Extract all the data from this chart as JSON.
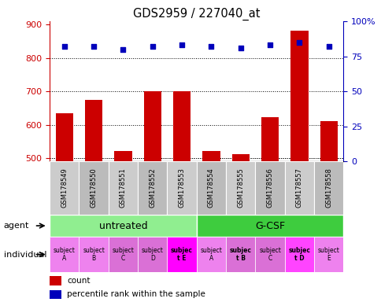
{
  "title": "GDS2959 / 227040_at",
  "samples": [
    "GSM178549",
    "GSM178550",
    "GSM178551",
    "GSM178552",
    "GSM178553",
    "GSM178554",
    "GSM178555",
    "GSM178556",
    "GSM178557",
    "GSM178558"
  ],
  "counts": [
    635,
    675,
    522,
    700,
    700,
    522,
    513,
    623,
    882,
    610
  ],
  "percentile_ranks": [
    82,
    82,
    80,
    82,
    83,
    82,
    81,
    83,
    85,
    82
  ],
  "ylim_left": [
    490,
    910
  ],
  "ylim_right": [
    0,
    100
  ],
  "yticks_left": [
    500,
    600,
    700,
    800,
    900
  ],
  "yticks_right": [
    0,
    25,
    50,
    75,
    100
  ],
  "ytick_labels_right": [
    "0",
    "25",
    "50",
    "75",
    "100%"
  ],
  "agent_groups": [
    {
      "label": "untreated",
      "start": 0,
      "end": 5,
      "color": "#90EE90"
    },
    {
      "label": "G-CSF",
      "start": 5,
      "end": 10,
      "color": "#3ECC3E"
    }
  ],
  "indiv_texts": [
    "subject\nA",
    "subject\nB",
    "subject\nC",
    "subject\nD",
    "subjec\nt E",
    "subject\nA",
    "subjec\nt B",
    "subject\nC",
    "subjec\nt D",
    "subject\nE"
  ],
  "indiv_colors": [
    "#EE82EE",
    "#EE82EE",
    "#DA70D6",
    "#DA70D6",
    "#FF00FF",
    "#EE82EE",
    "#DA70D6",
    "#DA70D6",
    "#FF44FF",
    "#EE82EE"
  ],
  "indiv_bold": [
    false,
    false,
    false,
    false,
    true,
    false,
    true,
    false,
    true,
    false
  ],
  "bar_color": "#CC0000",
  "dot_color": "#0000BB",
  "dot_size": 20,
  "bar_width": 0.6,
  "left_axis_color": "#CC0000",
  "right_axis_color": "#0000BB",
  "agent_label": "agent",
  "individual_label": "individual",
  "legend_count_label": "count",
  "legend_pct_label": "percentile rank within the sample",
  "sample_bg_colors": [
    "#CCCCCC",
    "#BBBBBB",
    "#CCCCCC",
    "#BBBBBB",
    "#CCCCCC",
    "#BBBBBB",
    "#CCCCCC",
    "#BBBBBB",
    "#CCCCCC",
    "#BBBBBB"
  ]
}
